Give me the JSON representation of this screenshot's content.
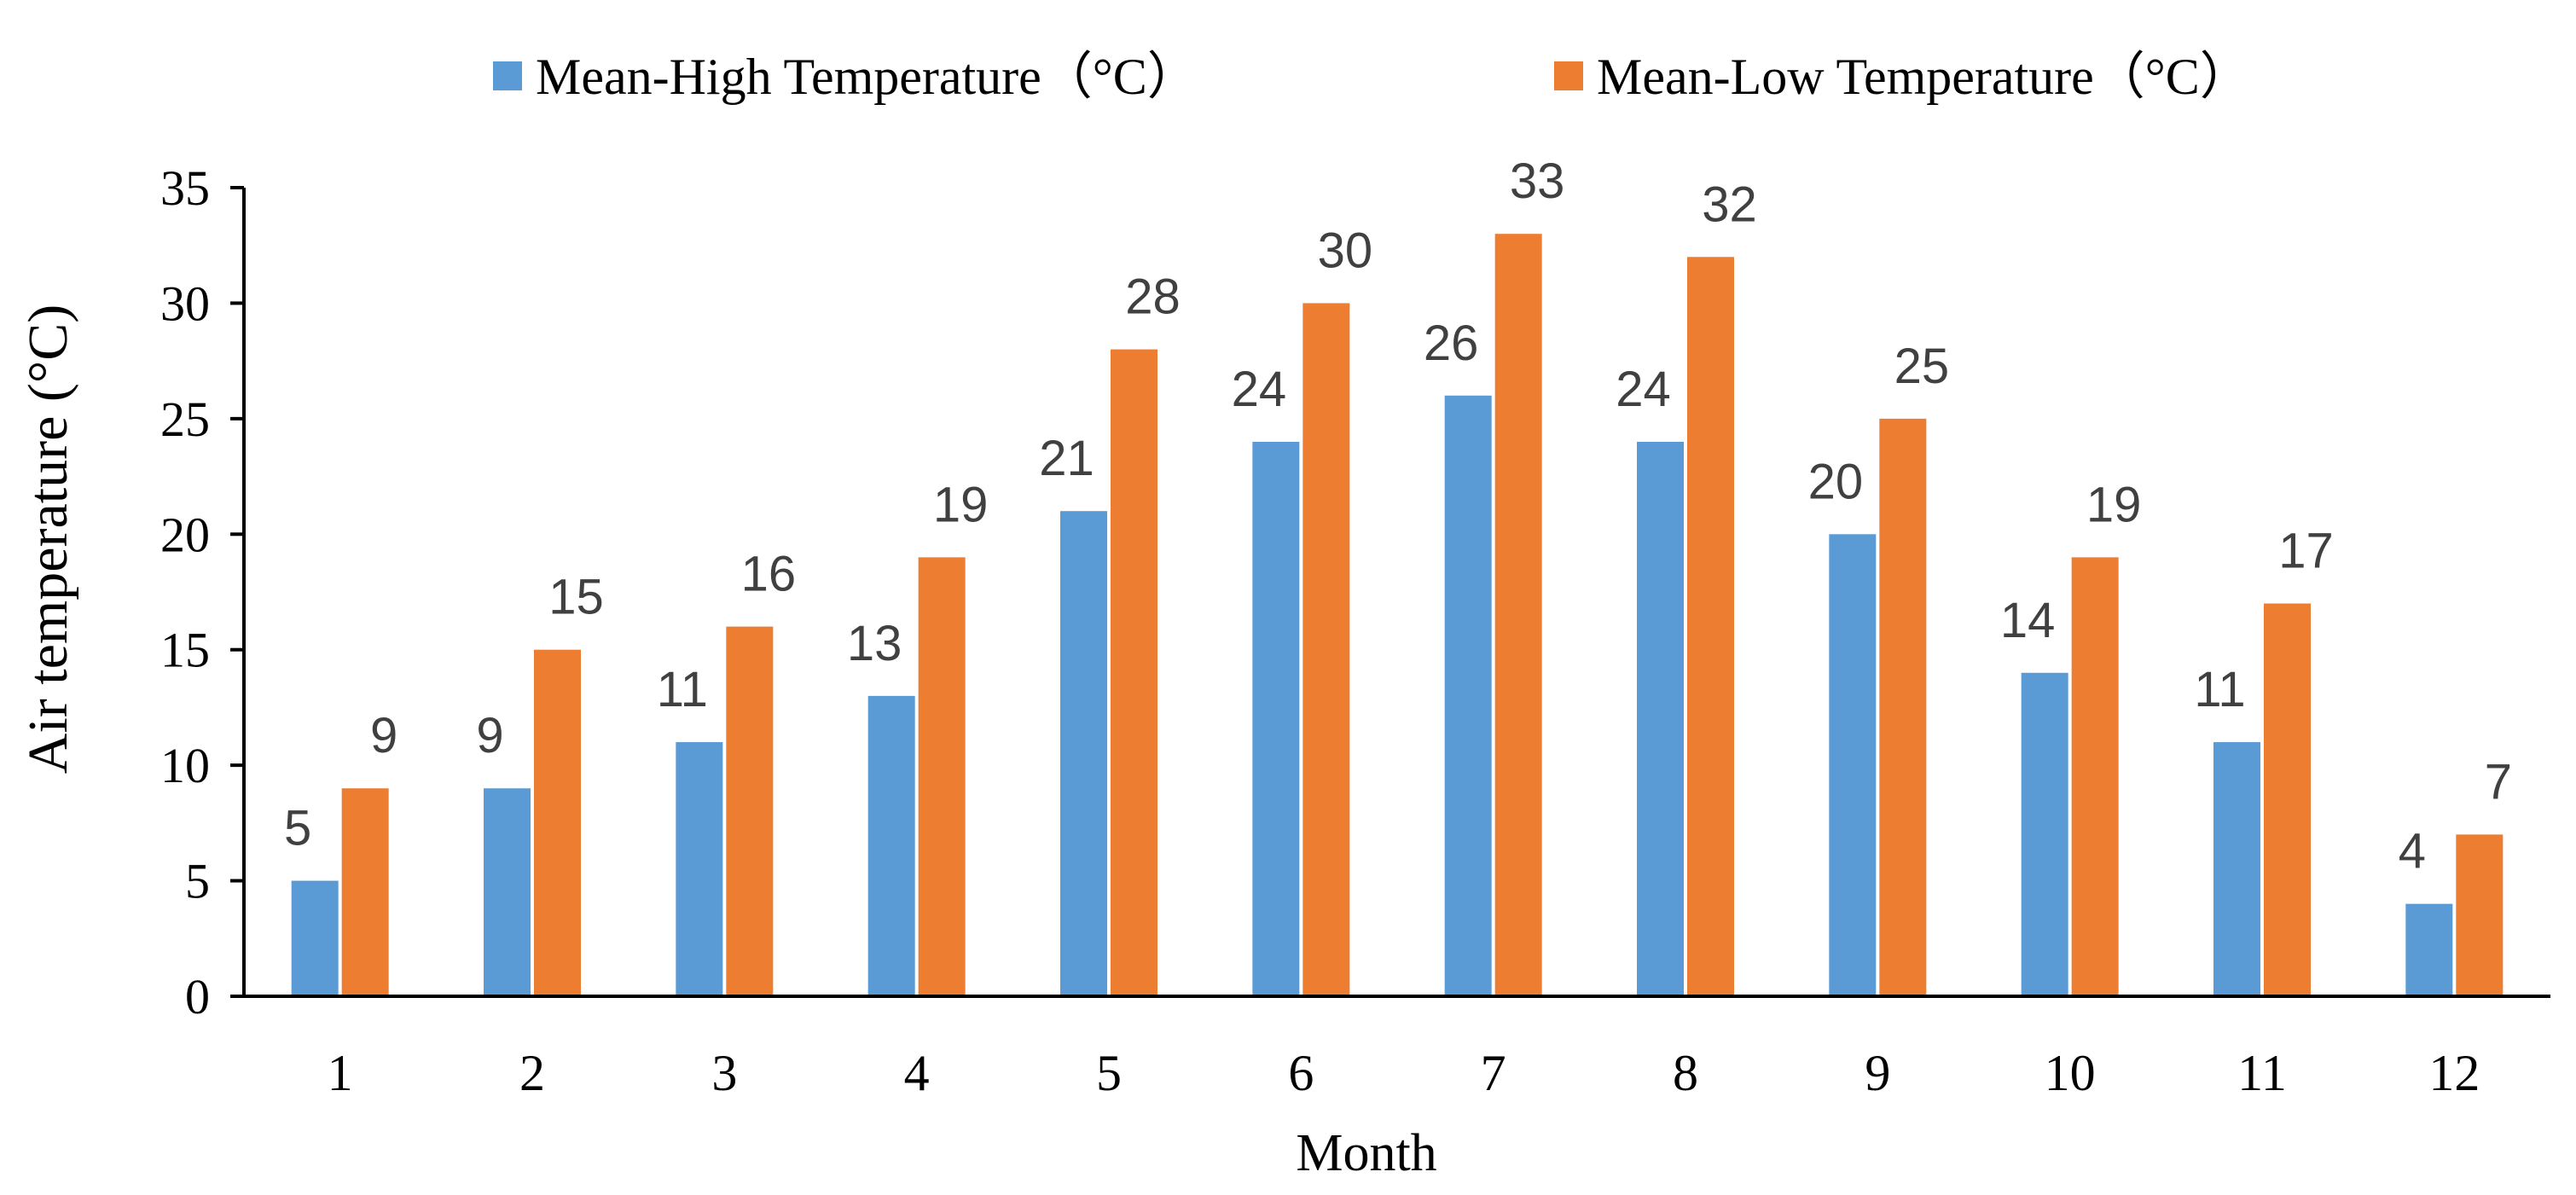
{
  "chart_data": {
    "type": "bar",
    "title": "",
    "xlabel": "Month",
    "ylabel": "Air temperature (°C)",
    "ylim": [
      0,
      35
    ],
    "yticks": [
      0,
      5,
      10,
      15,
      20,
      25,
      30,
      35
    ],
    "grid": false,
    "legend_position": "top-center",
    "categories": [
      "1",
      "2",
      "3",
      "4",
      "5",
      "6",
      "7",
      "8",
      "9",
      "10",
      "11",
      "12"
    ],
    "series": [
      {
        "name": "Mean-High Temperature（°C）",
        "color": "#5B9BD5",
        "values": [
          5,
          9,
          11,
          13,
          21,
          24,
          26,
          24,
          20,
          14,
          11,
          4
        ]
      },
      {
        "name": "Mean-Low Temperature（°C）",
        "color": "#ED7D31",
        "values": [
          9,
          15,
          16,
          19,
          28,
          30,
          33,
          32,
          25,
          19,
          17,
          7
        ]
      }
    ],
    "axis_color": "#000000",
    "label_color": "#404040"
  }
}
